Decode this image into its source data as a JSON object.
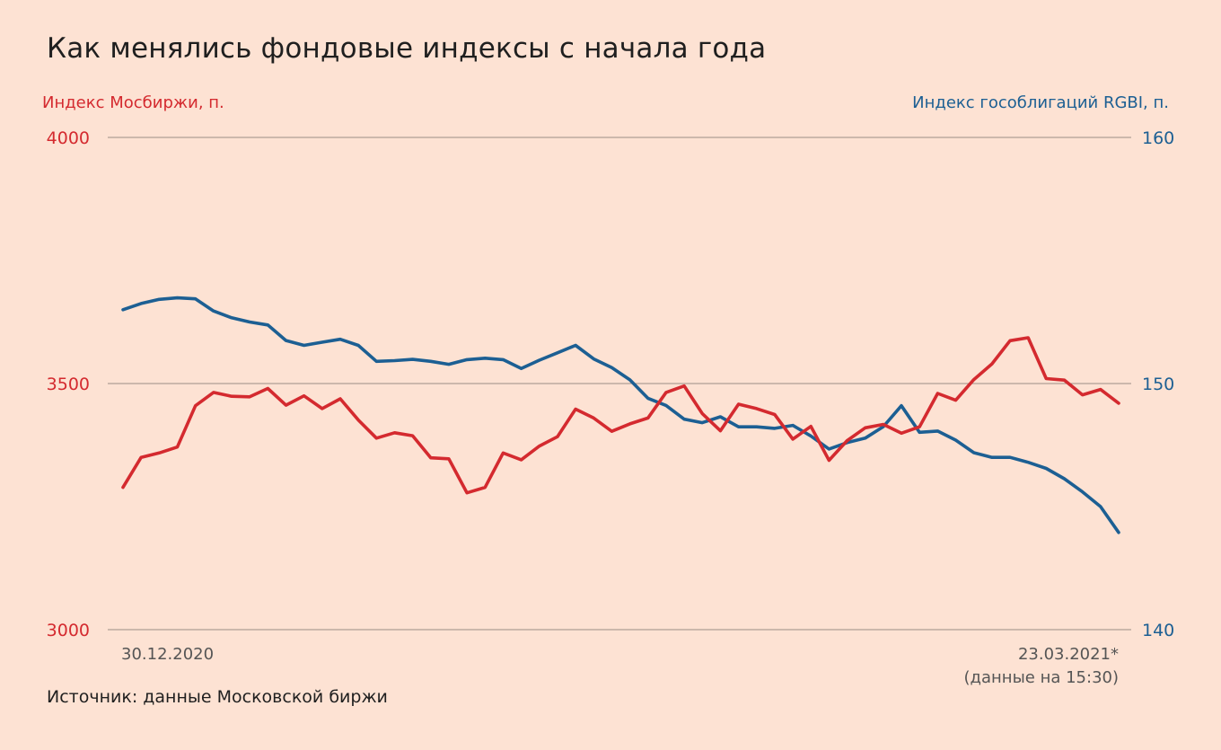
{
  "title": "Как менялись фондовые индексы с начала года",
  "source": "Источник: данные Московской биржи",
  "chart_data": {
    "type": "line",
    "title": "Как менялись фондовые индексы с начала года",
    "y_left": {
      "label": "Индекс Мосбиржи, п.",
      "ylim": [
        3000,
        4000
      ],
      "ticks": [
        "4000",
        "3500",
        "3000"
      ],
      "color": "#d42a2f"
    },
    "y_right": {
      "label": "Индекс гособлигаций RGBI, п.",
      "ylim": [
        140,
        160
      ],
      "ticks": [
        "160",
        "150",
        "140"
      ],
      "color": "#1c5f93"
    },
    "x_labels": {
      "start": "30.12.2020",
      "end": "23.03.2021*",
      "end_note": "(данные на 15:30)"
    },
    "grid": "horizontal",
    "series": [
      {
        "name": "Индекс Мосбиржи, п.",
        "axis": "left",
        "color": "#d42a2f",
        "values": [
          3289,
          3350,
          3359,
          3371,
          3455,
          3482,
          3474,
          3473,
          3490,
          3456,
          3475,
          3449,
          3469,
          3426,
          3389,
          3400,
          3394,
          3349,
          3347,
          3278,
          3289,
          3359,
          3345,
          3373,
          3392,
          3448,
          3430,
          3403,
          3418,
          3430,
          3482,
          3495,
          3439,
          3404,
          3458,
          3449,
          3437,
          3387,
          3413,
          3344,
          3384,
          3410,
          3417,
          3399,
          3412,
          3480,
          3466,
          3508,
          3540,
          3587,
          3593,
          3510,
          3507,
          3477,
          3488,
          3460
        ]
      },
      {
        "name": "Индекс гособлигаций RGBI, п.",
        "axis": "right",
        "color": "#1c5f93",
        "values": [
          153.0,
          153.25,
          153.42,
          153.48,
          153.44,
          152.95,
          152.67,
          152.5,
          152.38,
          151.75,
          151.55,
          151.68,
          151.8,
          151.55,
          150.9,
          150.93,
          150.98,
          150.9,
          150.78,
          150.97,
          151.03,
          150.97,
          150.61,
          150.95,
          151.25,
          151.55,
          151.0,
          150.65,
          150.15,
          149.4,
          149.11,
          148.55,
          148.41,
          148.65,
          148.24,
          148.24,
          148.18,
          148.3,
          147.87,
          147.34,
          147.6,
          147.78,
          148.25,
          149.1,
          148.02,
          148.07,
          147.7,
          147.19,
          147.0,
          147.0,
          146.8,
          146.55,
          146.13,
          145.6,
          145.0,
          143.95
        ]
      }
    ]
  }
}
